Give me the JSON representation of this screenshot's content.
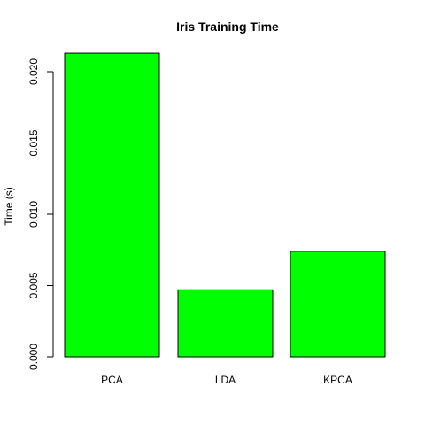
{
  "chart_data": {
    "type": "bar",
    "title": "Iris Training Time",
    "xlabel": "",
    "ylabel": "Time (s)",
    "categories": [
      "PCA",
      "LDA",
      "KPCA"
    ],
    "values": [
      0.0213,
      0.0047,
      0.0074
    ],
    "ylim": [
      0,
      0.02
    ],
    "yticks": [
      "0.000",
      "0.005",
      "0.010",
      "0.015",
      "0.020"
    ],
    "bar_color": "#00ff00",
    "bar_border_color": "#000000",
    "grid": false,
    "legend": "none"
  }
}
